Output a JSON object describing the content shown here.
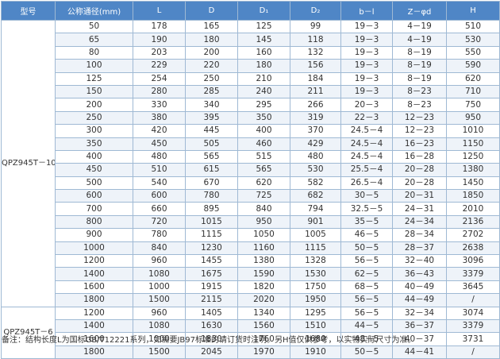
{
  "headers": [
    "型号",
    "公称通径(mm)",
    "L",
    "D",
    "D₁",
    "D₂",
    "b－l",
    "Z－φd",
    "H"
  ],
  "groups": [
    {
      "model": "QPZ945T－10",
      "rows": [
        [
          "50",
          "178",
          "165",
          "125",
          "99",
          "19－3",
          "4－19",
          "510"
        ],
        [
          "65",
          "190",
          "180",
          "145",
          "118",
          "19－3",
          "4－19",
          "530"
        ],
        [
          "80",
          "203",
          "200",
          "160",
          "132",
          "19－3",
          "8－19",
          "550"
        ],
        [
          "100",
          "229",
          "220",
          "180",
          "156",
          "19－3",
          "8－19",
          "590"
        ],
        [
          "125",
          "254",
          "250",
          "210",
          "184",
          "19－3",
          "8－19",
          "620"
        ],
        [
          "150",
          "280",
          "285",
          "240",
          "211",
          "19－3",
          "8－23",
          "710"
        ],
        [
          "200",
          "330",
          "340",
          "295",
          "266",
          "20－3",
          "8－23",
          "750"
        ],
        [
          "250",
          "380",
          "395",
          "350",
          "319",
          "22－3",
          "12－23",
          "950"
        ],
        [
          "300",
          "420",
          "445",
          "400",
          "370",
          "24.5－4",
          "12－23",
          "1010"
        ],
        [
          "350",
          "450",
          "505",
          "460",
          "429",
          "24.5－4",
          "16－23",
          "1150"
        ],
        [
          "400",
          "480",
          "565",
          "515",
          "480",
          "24.5－4",
          "16－28",
          "1250"
        ],
        [
          "450",
          "510",
          "615",
          "565",
          "530",
          "25.5－4",
          "20－28",
          "1380"
        ],
        [
          "500",
          "540",
          "670",
          "620",
          "582",
          "26.5－4",
          "20－28",
          "1450"
        ],
        [
          "600",
          "600",
          "780",
          "725",
          "682",
          "30－5",
          "20－31",
          "1850"
        ],
        [
          "700",
          "660",
          "895",
          "840",
          "794",
          "32.5－5",
          "24－31",
          "2010"
        ],
        [
          "800",
          "720",
          "1015",
          "950",
          "901",
          "35－5",
          "24－34",
          "2136"
        ],
        [
          "900",
          "780",
          "1115",
          "1050",
          "1005",
          "46－5",
          "28－34",
          "2702"
        ],
        [
          "1000",
          "840",
          "1230",
          "1160",
          "1115",
          "50－5",
          "28－37",
          "2638"
        ],
        [
          "1200",
          "960",
          "1455",
          "1380",
          "1328",
          "56－5",
          "32－40",
          "3096"
        ],
        [
          "1400",
          "1080",
          "1675",
          "1590",
          "1530",
          "62－5",
          "36－43",
          "3379"
        ],
        [
          "1600",
          "1000",
          "1915",
          "1820",
          "1750",
          "68－5",
          "40－49",
          "3645"
        ],
        [
          "1800",
          "1500",
          "2115",
          "2020",
          "1950",
          "56－5",
          "44－49",
          "/"
        ]
      ]
    },
    {
      "model": "QPZ945T－6",
      "rows": [
        [
          "1200",
          "960",
          "1405",
          "1340",
          "1295",
          "56－5",
          "32－34",
          "3074"
        ],
        [
          "1400",
          "1080",
          "1630",
          "1560",
          "1510",
          "44－5",
          "36－37",
          "3379"
        ],
        [
          "1600",
          "1000",
          "1830",
          "1760",
          "1680",
          "48－5",
          "40－37",
          "3731"
        ],
        [
          "1800",
          "1500",
          "2045",
          "1970",
          "1910",
          "50－5",
          "44－41",
          "/"
        ]
      ]
    }
  ],
  "note": "备注：结构长度L为国标GB/T12221系列，如需要JB97标准的请订货时注明。另H值仅供参考，以实物实际尺寸为准。"
}
